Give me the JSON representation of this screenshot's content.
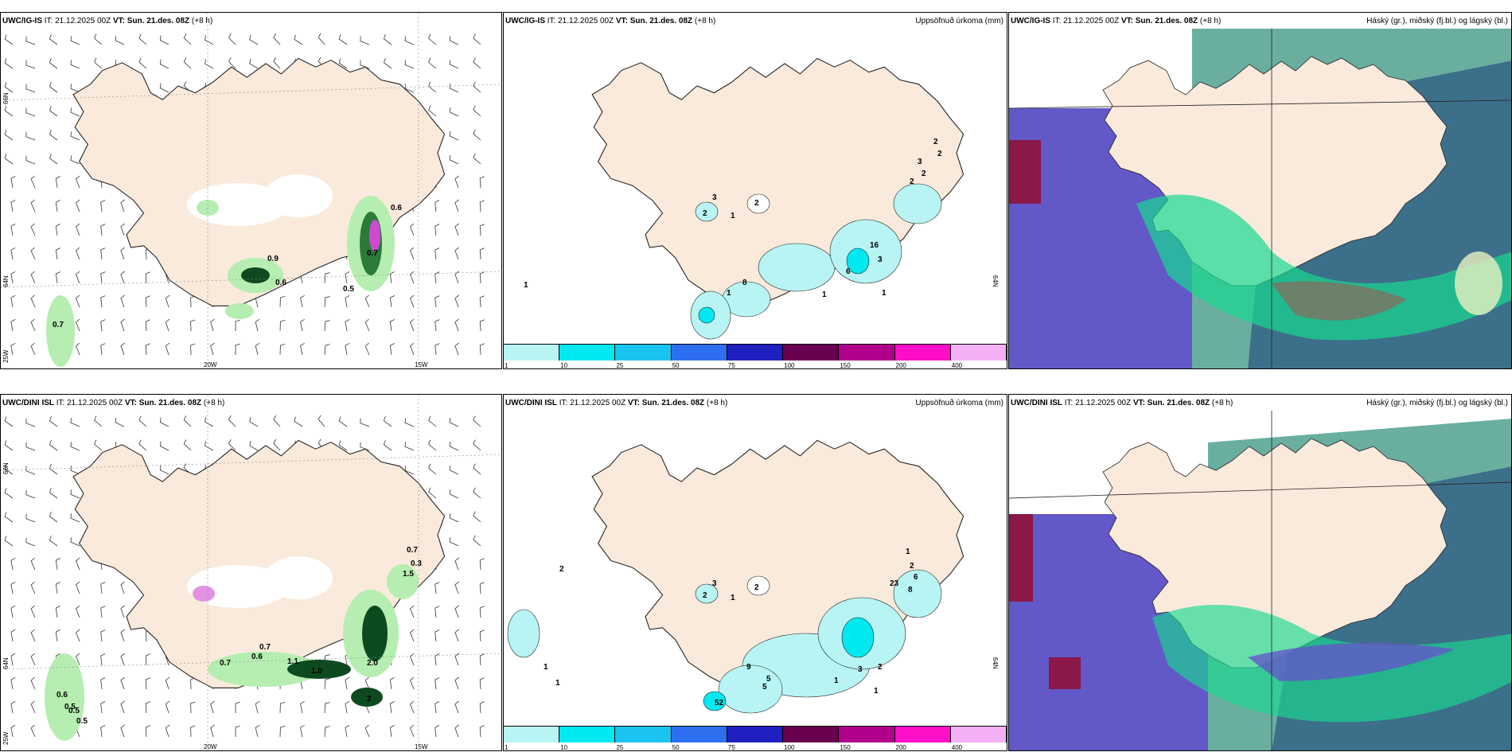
{
  "rows": [
    {
      "wind": {
        "model": "UWC/IG-IS",
        "it_label": "IT:",
        "it_value": "21.12.2025 00Z",
        "vt_label": "VT:",
        "vt_value": "Sun. 21.des. 08Z",
        "lead": "(+8 h)",
        "lat_labels": [
          "66N",
          "64N",
          "25W"
        ],
        "lon_labels": [
          "20W",
          "15W"
        ],
        "values": [
          "0.6",
          "0.9",
          "0.7",
          "0.6",
          "0.5",
          "0.7"
        ]
      },
      "precip": {
        "model": "UWC/IG-IS",
        "it_label": "IT:",
        "it_value": "21.12.2025 00Z",
        "vt_label": "VT:",
        "vt_value": "Sun. 21.des. 08Z",
        "lead": "(+8 h)",
        "title": "Uppsöfnuð úrkoma (mm)",
        "side_label": "64N",
        "values": [
          "3",
          "2",
          "2",
          "1",
          "1",
          "2",
          "2",
          "3",
          "2",
          "2",
          "16",
          "3",
          "6",
          "8",
          "1",
          "1",
          "1"
        ]
      },
      "cloud": {
        "model": "UWC/IG-IS",
        "it_label": "IT:",
        "it_value": "21.12.2025 00Z",
        "vt_label": "VT:",
        "vt_value": "Sun. 21.des. 08Z",
        "lead": "(+8 h)",
        "title": "Háský (gr.), miðský (fj.bl.) og lágský (bl.)"
      }
    },
    {
      "wind": {
        "model": "UWC/DINI ISL",
        "it_label": "IT:",
        "it_value": "21.12.2025 00Z",
        "vt_label": "VT:",
        "vt_value": "Sun. 21.des. 08Z",
        "lead": "(+8 h)",
        "lat_labels": [
          "66N",
          "64N",
          "25W"
        ],
        "lon_labels": [
          "20W",
          "15W"
        ],
        "values": [
          "0.7",
          "0.3",
          "1.5",
          "0.7",
          "0.6",
          "0.7",
          "1.1",
          "1.0",
          "2.0",
          "2",
          "0.6",
          "0.5",
          "0.5",
          "0.5"
        ]
      },
      "precip": {
        "model": "UWC/DINI ISL",
        "it_label": "IT:",
        "it_value": "21.12.2025 00Z",
        "vt_label": "VT:",
        "vt_value": "Sun. 21.des. 08Z",
        "lead": "(+8 h)",
        "title": "Uppsöfnuð úrkoma (mm)",
        "side_label": "64N",
        "values": [
          "3",
          "2",
          "2",
          "1",
          "2",
          "2",
          "1",
          "6",
          "8",
          "23",
          "9",
          "5",
          "5",
          "52",
          "3",
          "2",
          "1",
          "1",
          "1",
          "1"
        ]
      },
      "cloud": {
        "model": "UWC/DINI ISL",
        "it_label": "IT:",
        "it_value": "21.12.2025 00Z",
        "vt_label": "VT:",
        "vt_value": "Sun. 21.des. 08Z",
        "lead": "(+8 h)",
        "title": "Háský (gr.), miðský (fj.bl.) og lágský (bl.)"
      }
    }
  ],
  "colorbar": {
    "labels": [
      "1",
      "10",
      "25",
      "50",
      "75",
      "100",
      "150",
      "200",
      "400"
    ],
    "colors": [
      "#b8f4f4",
      "#00e8f0",
      "#1bc4f0",
      "#2e6ff0",
      "#2020c0",
      "#6a0050",
      "#b0008c",
      "#ff10c8",
      "#f4b0f4"
    ]
  },
  "palette": {
    "land": "#f9eadc",
    "wind_green_light": "#b5eeb0",
    "wind_green_dark": "#0e4a20",
    "precip_light": "#b8f4f4",
    "cloud_high": "#6aaea0",
    "cloud_mid": "#3c6f8a",
    "cloud_low": "#6258c8",
    "cloud_green": "#18d890"
  }
}
